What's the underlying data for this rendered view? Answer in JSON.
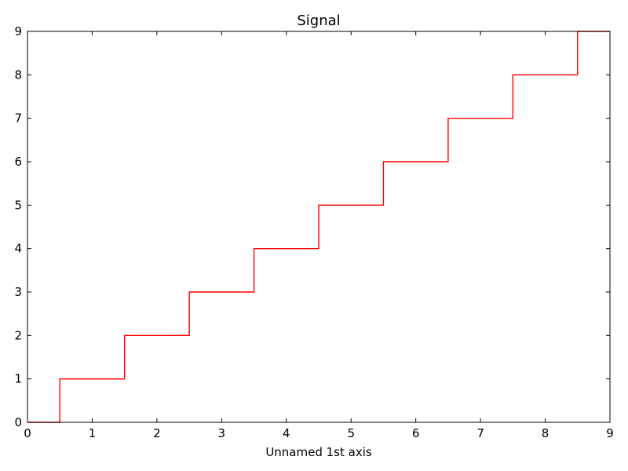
{
  "chart_data": {
    "type": "line",
    "drawstyle": "steps-mid",
    "title": "Signal",
    "xlabel": "Unnamed 1st axis",
    "ylabel": "",
    "xlim": [
      0,
      9
    ],
    "ylim": [
      0,
      9
    ],
    "xticks": [
      0,
      1,
      2,
      3,
      4,
      5,
      6,
      7,
      8,
      9
    ],
    "yticks": [
      0,
      1,
      2,
      3,
      4,
      5,
      6,
      7,
      8,
      9
    ],
    "grid": false,
    "legend": "none",
    "series": [
      {
        "x": [
          0,
          1,
          2,
          3,
          4,
          5,
          6,
          7,
          8,
          9
        ],
        "y": [
          0,
          1,
          2,
          3,
          4,
          5,
          6,
          7,
          8,
          9
        ],
        "color": "#ff0000"
      }
    ]
  }
}
